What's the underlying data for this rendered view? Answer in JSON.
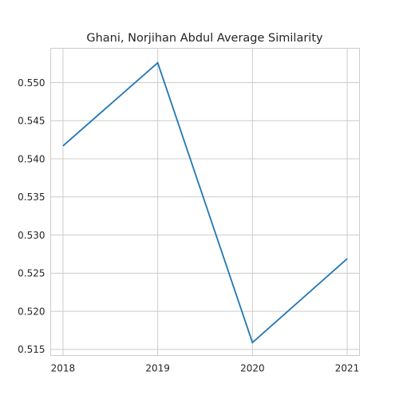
{
  "chart_data": {
    "type": "line",
    "title": "Ghani, Norjihan Abdul Average Similarity",
    "xlabel": "",
    "ylabel": "",
    "x": [
      "2018",
      "2019",
      "2020",
      "2021"
    ],
    "series": [
      {
        "name": "Average Similarity",
        "values": [
          0.5417,
          0.5526,
          0.5159,
          0.5269
        ],
        "color": "#1f77b4"
      }
    ],
    "xlim": [
      2017.87,
      2021.13
    ],
    "ylim": [
      0.5142,
      0.5545
    ],
    "yticks": [
      "0.515",
      "0.520",
      "0.525",
      "0.530",
      "0.535",
      "0.540",
      "0.545",
      "0.550"
    ],
    "grid": true,
    "legend": "none"
  }
}
